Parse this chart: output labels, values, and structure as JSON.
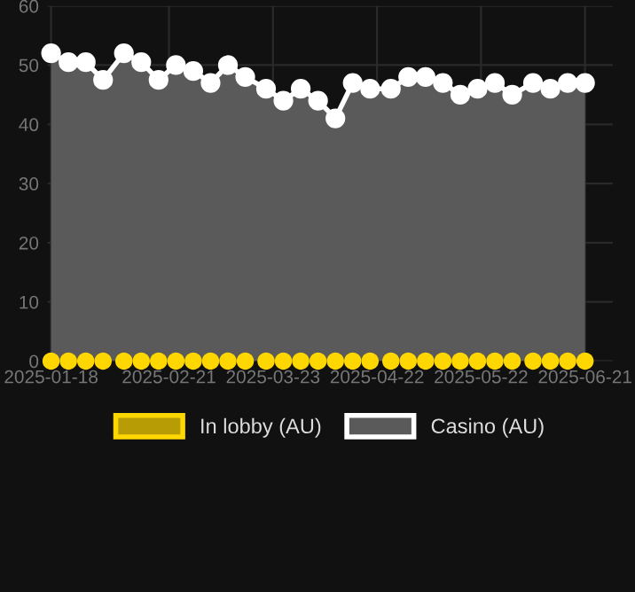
{
  "chart_data": {
    "type": "area",
    "x": [
      "2025-01-18",
      "2025-01-23",
      "2025-01-28",
      "2025-02-02",
      "2025-02-08",
      "2025-02-13",
      "2025-02-18",
      "2025-02-23",
      "2025-02-28",
      "2025-03-05",
      "2025-03-10",
      "2025-03-15",
      "2025-03-21",
      "2025-03-26",
      "2025-03-31",
      "2025-04-05",
      "2025-04-10",
      "2025-04-15",
      "2025-04-20",
      "2025-04-26",
      "2025-05-01",
      "2025-05-06",
      "2025-05-11",
      "2025-05-16",
      "2025-05-21",
      "2025-05-26",
      "2025-05-31",
      "2025-06-06",
      "2025-06-11",
      "2025-06-16",
      "2025-06-21"
    ],
    "series": [
      {
        "name": "In lobby (AU)",
        "color": "#ffd700",
        "type": "scatter",
        "values": [
          0,
          0,
          0,
          0,
          0,
          0,
          0,
          0,
          0,
          0,
          0,
          0,
          0,
          0,
          0,
          0,
          0,
          0,
          0,
          0,
          0,
          0,
          0,
          0,
          0,
          0,
          0,
          0,
          0,
          0,
          0
        ]
      },
      {
        "name": "Casino (AU)",
        "color": "#ffffff",
        "values": [
          52,
          50.5,
          50.5,
          47.5,
          52,
          50.5,
          47.5,
          50,
          49,
          47,
          50,
          48,
          46,
          44,
          46,
          44,
          41,
          47,
          46,
          46,
          48,
          48,
          47,
          45,
          46,
          47,
          45,
          47,
          46,
          47,
          47
        ]
      }
    ],
    "xlim": [
      "2025-01-17",
      "2025-06-29"
    ],
    "xticks": [
      "2025-01-18",
      "2025-02-21",
      "2025-03-23",
      "2025-04-22",
      "2025-05-22",
      "2025-06-21"
    ],
    "ylim": [
      0,
      60
    ],
    "yticks": [
      0,
      10,
      20,
      30,
      40,
      50,
      60
    ],
    "grid": true,
    "legend": "bottom",
    "marker": "circle",
    "line_style": "solid"
  }
}
